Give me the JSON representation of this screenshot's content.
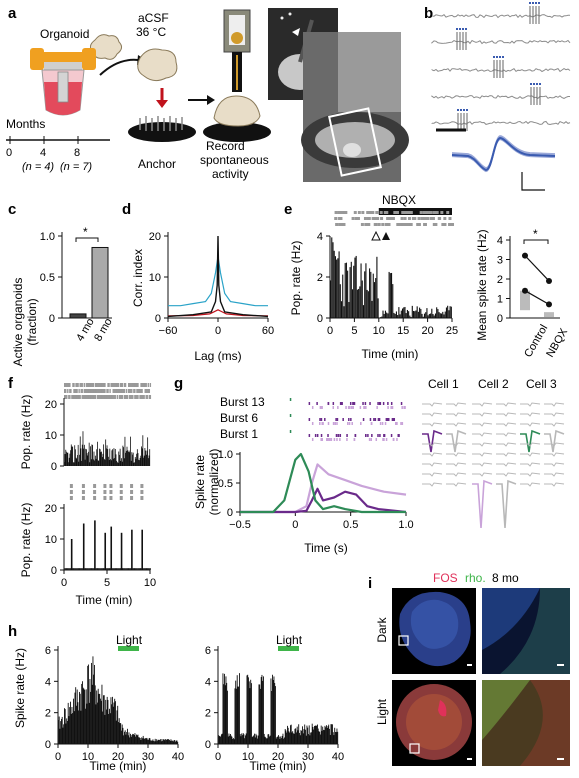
{
  "panels": {
    "a": {
      "label": "a",
      "organoid": "Organoid",
      "acsf_line1": "aCSF",
      "acsf_line2": "36 °C",
      "months": "Months",
      "ticks": [
        "0",
        "4",
        "8"
      ],
      "n4": "(n = 4)",
      "n7": "(n = 7)",
      "anchor": "Anchor",
      "record_line1": "Record",
      "record_line2": "spontaneous",
      "record_line3": "activity"
    },
    "b": {
      "label": "b",
      "trace_color": "#3a5bb0"
    },
    "c": {
      "label": "c",
      "ylabel_line1": "Active organoids",
      "ylabel_line2": "(fraction)",
      "yticks": [
        "0",
        "0.5",
        "1.0"
      ],
      "significance": "*",
      "chart_data": {
        "type": "bar",
        "categories": [
          "4 mo",
          "8 mo"
        ],
        "values": [
          0.05,
          0.86
        ],
        "ylabel": "Active organoids (fraction)",
        "ylim": [
          0,
          1.0
        ]
      }
    },
    "d": {
      "label": "d",
      "ylabel": "Corr. index",
      "xlabel": "Lag (ms)",
      "xticks": [
        "−60",
        "0",
        "60"
      ],
      "yticks": [
        "0",
        "10",
        "20"
      ],
      "chart_data": {
        "type": "line",
        "xlabel": "Lag (ms)",
        "ylabel": "Corr. index",
        "xlim": [
          -60,
          60
        ],
        "ylim": [
          0,
          20
        ],
        "series": [
          {
            "color": "#2aa3c8",
            "x": [
              -60,
              -45,
              -30,
              -15,
              -8,
              -3,
              0,
              3,
              8,
              15,
              30,
              45,
              60
            ],
            "y": [
              3,
              3,
              3.5,
              4,
              6,
              11,
              15,
              11,
              6,
              4,
              3.5,
              3,
              3
            ]
          },
          {
            "color": "#c0121c",
            "x": [
              -60,
              -30,
              -10,
              -5,
              0,
              5,
              10,
              30,
              60
            ],
            "y": [
              0.5,
              0.6,
              1,
              1.5,
              2,
              1.5,
              1,
              0.6,
              0.5
            ]
          },
          {
            "color": "#111111",
            "x": [
              -60,
              -30,
              -8,
              -3,
              -1,
              0,
              1,
              3,
              8,
              30,
              60
            ],
            "y": [
              0.4,
              0.8,
              1.5,
              4,
              8,
              20,
              8,
              4,
              1.5,
              0.8,
              0.4
            ]
          }
        ]
      }
    },
    "e": {
      "label": "e",
      "drug": "NBQX",
      "ylabel": "Pop. rate (Hz)",
      "xlabel": "Time (min)",
      "xticks": [
        "0",
        "5",
        "10",
        "15",
        "20",
        "25"
      ],
      "yticks": [
        "0",
        "2",
        "4"
      ],
      "right_ylabel": "Mean spike rate (Hz)",
      "right_yticks": [
        "0",
        "1",
        "2",
        "3",
        "4"
      ],
      "right_categories": [
        "Control",
        "NBQX"
      ],
      "significance": "*",
      "chart_data": {
        "type": "bar",
        "xlabel": "Time (min)",
        "ylabel": "Pop. rate (Hz)",
        "xlim": [
          0,
          25
        ],
        "ylim": [
          0,
          4
        ],
        "drug_window": [
          10,
          25
        ],
        "paired_points": [
          {
            "control": 3.2,
            "nbqx": 1.9
          },
          {
            "control": 1.4,
            "nbqx": 0.7
          }
        ],
        "box_means": {
          "control": 1.0,
          "nbqx": 0.2
        }
      }
    },
    "f": {
      "label": "f",
      "ylabel": "Pop. rate (Hz)",
      "xlabel": "Time (min)",
      "xticks": [
        "0",
        "5",
        "10"
      ],
      "top_yticks": [
        "0",
        "10",
        "20"
      ],
      "bottom_yticks": [
        "0",
        "10",
        "20"
      ],
      "chart_data": {
        "type": "bar",
        "xlabel": "Time (min)",
        "ylabel": "Pop. rate (Hz)",
        "xlim": [
          0,
          10
        ],
        "ylim": [
          0,
          20
        ],
        "bottom_burst_times": [
          0.8,
          2.2,
          3.5,
          4.7,
          5.4,
          6.6,
          7.8,
          9.0
        ],
        "bottom_burst_heights": [
          10,
          15,
          16,
          12,
          14,
          12,
          13,
          13
        ]
      }
    },
    "g": {
      "label": "g",
      "bursts": [
        "Burst 13",
        "Burst 6",
        "Burst 1"
      ],
      "ylabel_line1": "Spike rate",
      "ylabel_line2": "(normalized)",
      "xlabel": "Time (s)",
      "xticks": [
        "−0.5",
        "0",
        "0.5",
        "1.0"
      ],
      "yticks": [
        "0",
        "0.5",
        "1.0"
      ],
      "cell1": "Cell 1",
      "cell2": "Cell 2",
      "cell3": "Cell 3",
      "colors": {
        "cell1": "#6a2a8a",
        "cell2": "#c9a3d9",
        "cell3": "#2e8b57"
      },
      "chart_data": {
        "type": "line",
        "xlabel": "Time (s)",
        "ylabel": "Spike rate (normalized)",
        "xlim": [
          -0.5,
          1.0
        ],
        "ylim": [
          0,
          1.0
        ],
        "series": [
          {
            "color": "#2e8b57",
            "x": [
              -0.5,
              -0.2,
              -0.1,
              0,
              0.05,
              0.12,
              0.18,
              0.25,
              0.35,
              0.45,
              0.6,
              1.0
            ],
            "y": [
              0,
              0,
              0.2,
              0.9,
              1.0,
              0.7,
              0.2,
              0.05,
              0.1,
              0.05,
              0,
              0
            ]
          },
          {
            "color": "#6a2a8a",
            "x": [
              -0.5,
              0,
              0.1,
              0.15,
              0.2,
              0.25,
              0.35,
              0.45,
              0.55,
              0.65,
              0.75,
              1.0
            ],
            "y": [
              0,
              0,
              0.02,
              0.2,
              0.4,
              0.2,
              0.25,
              0.35,
              0.3,
              0.1,
              0.05,
              0
            ]
          },
          {
            "color": "#c9a3d9",
            "x": [
              -0.5,
              0,
              0.1,
              0.15,
              0.2,
              0.3,
              0.45,
              0.6,
              0.8,
              1.0
            ],
            "y": [
              0,
              0,
              0.1,
              0.5,
              0.82,
              0.65,
              0.55,
              0.45,
              0.35,
              0.3
            ]
          }
        ]
      }
    },
    "h": {
      "label": "h",
      "light": "Light",
      "ylabel": "Spike rate (Hz)",
      "xlabel": "Time (min)",
      "xticks": [
        "0",
        "10",
        "20",
        "30",
        "40"
      ],
      "yticks": [
        "0",
        "2",
        "4",
        "6"
      ],
      "light_color": "#3fb54a",
      "chart_data": {
        "type": "bar",
        "xlabel": "Time (min)",
        "ylabel": "Spike rate (Hz)",
        "xlim": [
          0,
          40
        ],
        "ylim": [
          0,
          6
        ],
        "light_window": [
          20,
          27
        ],
        "left_profile": [
          [
            0,
            1.2
          ],
          [
            3,
            2.0
          ],
          [
            6,
            2.8
          ],
          [
            9,
            3.6
          ],
          [
            11,
            4.2
          ],
          [
            14,
            3.0
          ],
          [
            17,
            2.4
          ],
          [
            19,
            2.2
          ],
          [
            21,
            1.0
          ],
          [
            24,
            0.6
          ],
          [
            30,
            0.3
          ],
          [
            40,
            0.2
          ]
        ],
        "right_bursts": [
          2,
          6,
          10,
          14,
          18
        ],
        "right_burst_height": 4.2,
        "right_after_level": 1.0
      }
    },
    "i": {
      "label": "i",
      "title_fos": "FOS",
      "title_rho": "rho.",
      "title_age": "8 mo",
      "dark": "Dark",
      "light": "Light",
      "fos_color": "#e0315a",
      "rho_color": "#3fb54a"
    }
  }
}
